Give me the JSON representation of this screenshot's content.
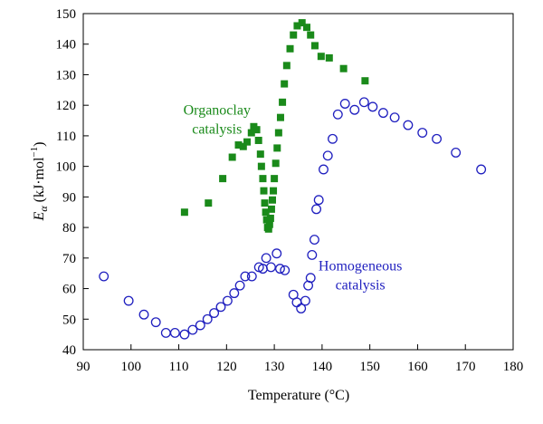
{
  "chart_data": {
    "type": "scatter",
    "xlabel": "Temperature (°C)",
    "ylabel_main": "E",
    "ylabel_sub": "α",
    "ylabel_rest": " (kJ·mol",
    "ylabel_sup": "−1",
    "ylabel_close": ")",
    "xlim": [
      90,
      180
    ],
    "ylim": [
      40,
      150
    ],
    "x_ticks": [
      90,
      100,
      110,
      120,
      130,
      140,
      150,
      160,
      170,
      180
    ],
    "y_ticks": [
      40,
      50,
      60,
      70,
      80,
      90,
      100,
      110,
      120,
      130,
      140,
      150
    ],
    "grid": false,
    "annotations": [
      {
        "id": "organoclay",
        "lines": [
          "Organoclay",
          "catalysis"
        ],
        "color": "#1a8a1a",
        "x": 118,
        "y": 117
      },
      {
        "id": "homogeneous",
        "lines": [
          "Homogeneous",
          "catalysis"
        ],
        "color": "#1f1fbf",
        "x": 148,
        "y": 66
      }
    ],
    "series": [
      {
        "id": "organoclay",
        "marker": "square",
        "color": "#1a8a1a",
        "points": [
          [
            111.2,
            85
          ],
          [
            116.2,
            88
          ],
          [
            119.2,
            96
          ],
          [
            121.2,
            103
          ],
          [
            122.5,
            107
          ],
          [
            123.5,
            106.5
          ],
          [
            124.3,
            108
          ],
          [
            125.2,
            111
          ],
          [
            125.7,
            113
          ],
          [
            126.3,
            112
          ],
          [
            126.7,
            108.5
          ],
          [
            127.1,
            104
          ],
          [
            127.3,
            100
          ],
          [
            127.6,
            96
          ],
          [
            127.8,
            92
          ],
          [
            128,
            88
          ],
          [
            128.2,
            85
          ],
          [
            128.4,
            82.5
          ],
          [
            128.6,
            80
          ],
          [
            128.8,
            79.5
          ],
          [
            129,
            81
          ],
          [
            129.2,
            83
          ],
          [
            129.4,
            86
          ],
          [
            129.6,
            89
          ],
          [
            129.8,
            92
          ],
          [
            130,
            96
          ],
          [
            130.3,
            101
          ],
          [
            130.6,
            106
          ],
          [
            130.9,
            111
          ],
          [
            131.3,
            116
          ],
          [
            131.7,
            121
          ],
          [
            132.1,
            127
          ],
          [
            132.6,
            133
          ],
          [
            133.3,
            138.5
          ],
          [
            134,
            143
          ],
          [
            134.8,
            146
          ],
          [
            135.8,
            147
          ],
          [
            136.8,
            145.5
          ],
          [
            137.6,
            143
          ],
          [
            138.5,
            139.5
          ],
          [
            139.8,
            136
          ],
          [
            141.5,
            135.5
          ],
          [
            144.5,
            132
          ],
          [
            149,
            128
          ]
        ]
      },
      {
        "id": "homogeneous",
        "marker": "circle",
        "color": "#1f1fbf",
        "points": [
          [
            94.3,
            64
          ],
          [
            99.5,
            56
          ],
          [
            102.7,
            51.5
          ],
          [
            105.2,
            49
          ],
          [
            107.3,
            45.5
          ],
          [
            109.2,
            45.5
          ],
          [
            111.2,
            45
          ],
          [
            112.9,
            46.5
          ],
          [
            114.5,
            48
          ],
          [
            116,
            50
          ],
          [
            117.4,
            52
          ],
          [
            118.8,
            54
          ],
          [
            120.2,
            56
          ],
          [
            121.6,
            58.5
          ],
          [
            122.8,
            61
          ],
          [
            123.9,
            64
          ],
          [
            125.3,
            64
          ],
          [
            126.8,
            67
          ],
          [
            127.6,
            66.5
          ],
          [
            128.3,
            70
          ],
          [
            129.3,
            67
          ],
          [
            130.5,
            71.5
          ],
          [
            131.2,
            66.5
          ],
          [
            132.2,
            66
          ],
          [
            134,
            58
          ],
          [
            134.7,
            55.5
          ],
          [
            135.6,
            53.5
          ],
          [
            136.5,
            56
          ],
          [
            137.1,
            61
          ],
          [
            137.6,
            63.5
          ],
          [
            137.9,
            71
          ],
          [
            138.4,
            76
          ],
          [
            138.8,
            86
          ],
          [
            139.3,
            89
          ],
          [
            140.3,
            99
          ],
          [
            141.2,
            103.5
          ],
          [
            142.2,
            109
          ],
          [
            143.3,
            117
          ],
          [
            144.8,
            120.5
          ],
          [
            146.8,
            118.5
          ],
          [
            148.8,
            121
          ],
          [
            150.6,
            119.5
          ],
          [
            152.8,
            117.5
          ],
          [
            155.2,
            116
          ],
          [
            158,
            113.5
          ],
          [
            161,
            111
          ],
          [
            164,
            109
          ],
          [
            168,
            104.5
          ],
          [
            173.3,
            99
          ]
        ]
      }
    ]
  }
}
